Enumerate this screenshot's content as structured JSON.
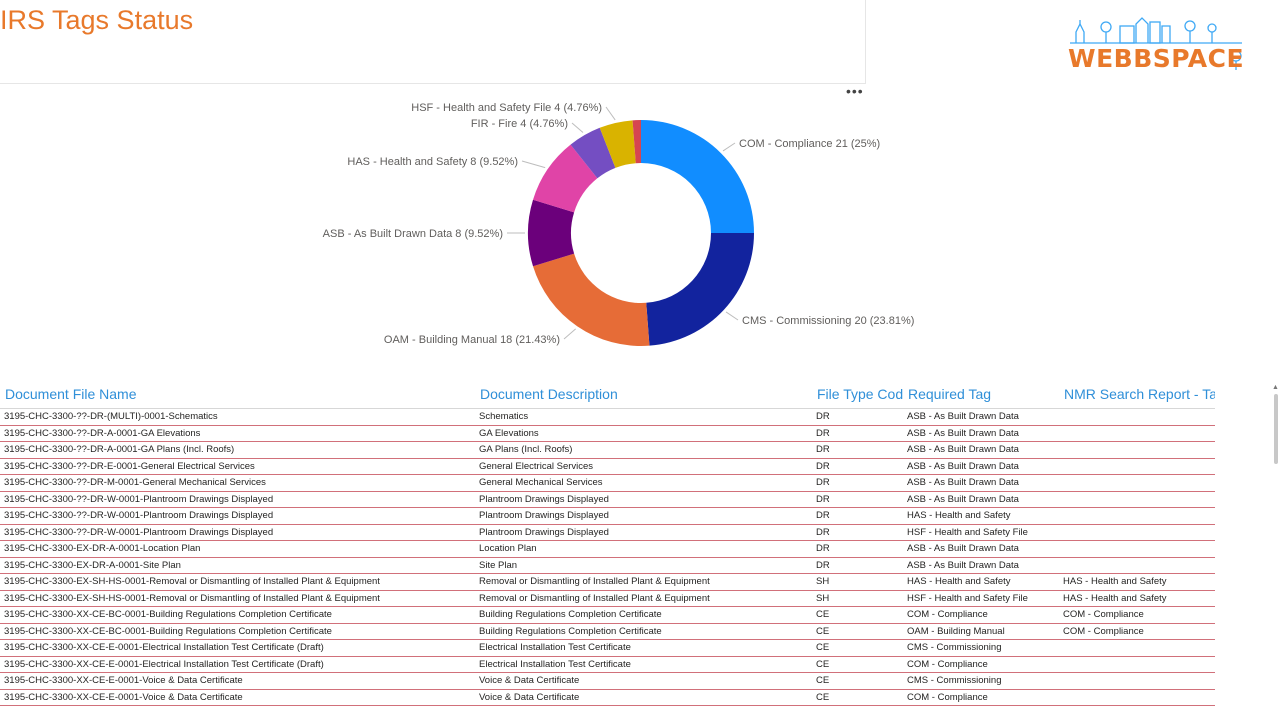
{
  "page": {
    "title": "IRS Tags Status"
  },
  "logo": {
    "text": "WEBBSPACE"
  },
  "chart_data": {
    "type": "pie",
    "donut": true,
    "legend": "none",
    "slices": [
      {
        "label": "COM - Compliance 21 (25%)",
        "value": 21,
        "color": "#118DFF"
      },
      {
        "label": "CMS - Commissioning 20 (23.81%)",
        "value": 20,
        "color": "#12239E"
      },
      {
        "label": "OAM - Building Manual 18 (21.43%)",
        "value": 18,
        "color": "#E66C37"
      },
      {
        "label": "ASB - As Built Drawn Data 8 (9.52%)",
        "value": 8,
        "color": "#6B007B"
      },
      {
        "label": "HAS - Health and Safety 8 (9.52%)",
        "value": 8,
        "color": "#E044A7"
      },
      {
        "label": "FIR - Fire 4 (4.76%)",
        "value": 4,
        "color": "#744EC2"
      },
      {
        "label": "HSF - Health and Safety File 4 (4.76%)",
        "value": 4,
        "color": "#D9B300"
      },
      {
        "label": "",
        "value": 1,
        "color": "#D64550"
      }
    ]
  },
  "table": {
    "columns": [
      "Document File Name",
      "Document Description",
      "File Type Code",
      "Required Tag",
      "NMR Search Report - Tag"
    ],
    "rows": [
      [
        "3195-CHC-3300-??-DR-(MULTI)-0001-Schematics",
        "Schematics",
        "DR",
        "ASB - As Built Drawn Data",
        ""
      ],
      [
        "3195-CHC-3300-??-DR-A-0001-GA Elevations",
        "GA Elevations",
        "DR",
        "ASB - As Built Drawn Data",
        ""
      ],
      [
        "3195-CHC-3300-??-DR-A-0001-GA Plans (Incl. Roofs)",
        "GA Plans (Incl. Roofs)",
        "DR",
        "ASB - As Built Drawn Data",
        ""
      ],
      [
        "3195-CHC-3300-??-DR-E-0001-General Electrical Services",
        "General Electrical Services",
        "DR",
        "ASB - As Built Drawn Data",
        ""
      ],
      [
        "3195-CHC-3300-??-DR-M-0001-General Mechanical Services",
        "General Mechanical Services",
        "DR",
        "ASB - As Built Drawn Data",
        ""
      ],
      [
        "3195-CHC-3300-??-DR-W-0001-Plantroom Drawings Displayed",
        "Plantroom Drawings Displayed",
        "DR",
        "ASB - As Built Drawn Data",
        ""
      ],
      [
        "3195-CHC-3300-??-DR-W-0001-Plantroom Drawings Displayed",
        "Plantroom Drawings Displayed",
        "DR",
        "HAS - Health and Safety",
        ""
      ],
      [
        "3195-CHC-3300-??-DR-W-0001-Plantroom Drawings Displayed",
        "Plantroom Drawings Displayed",
        "DR",
        "HSF - Health and Safety File",
        ""
      ],
      [
        "3195-CHC-3300-EX-DR-A-0001-Location Plan",
        "Location Plan",
        "DR",
        "ASB - As Built Drawn Data",
        ""
      ],
      [
        "3195-CHC-3300-EX-DR-A-0001-Site Plan",
        "Site Plan",
        "DR",
        "ASB - As Built Drawn Data",
        ""
      ],
      [
        "3195-CHC-3300-EX-SH-HS-0001-Removal or Dismantling of Installed Plant & Equipment",
        "Removal or Dismantling of Installed Plant & Equipment",
        "SH",
        "HAS - Health and Safety",
        "HAS - Health and Safety"
      ],
      [
        "3195-CHC-3300-EX-SH-HS-0001-Removal or Dismantling of Installed Plant & Equipment",
        "Removal or Dismantling of Installed Plant & Equipment",
        "SH",
        "HSF - Health and Safety File",
        "HAS - Health and Safety"
      ],
      [
        "3195-CHC-3300-XX-CE-BC-0001-Building Regulations Completion Certificate",
        "Building Regulations Completion Certificate",
        "CE",
        "COM - Compliance",
        "COM - Compliance"
      ],
      [
        "3195-CHC-3300-XX-CE-BC-0001-Building Regulations Completion Certificate",
        "Building Regulations Completion Certificate",
        "CE",
        "OAM - Building Manual",
        "COM - Compliance"
      ],
      [
        "3195-CHC-3300-XX-CE-E-0001-Electrical Installation Test Certificate (Draft)",
        "Electrical Installation Test Certificate",
        "CE",
        "CMS - Commissioning",
        ""
      ],
      [
        "3195-CHC-3300-XX-CE-E-0001-Electrical Installation Test Certificate (Draft)",
        "Electrical Installation Test Certificate",
        "CE",
        "COM - Compliance",
        ""
      ],
      [
        "3195-CHC-3300-XX-CE-E-0001-Voice & Data Certificate",
        "Voice & Data Certificate",
        "CE",
        "CMS - Commissioning",
        ""
      ],
      [
        "3195-CHC-3300-XX-CE-E-0001-Voice & Data Certificate",
        "Voice & Data Certificate",
        "CE",
        "COM - Compliance",
        ""
      ]
    ]
  }
}
